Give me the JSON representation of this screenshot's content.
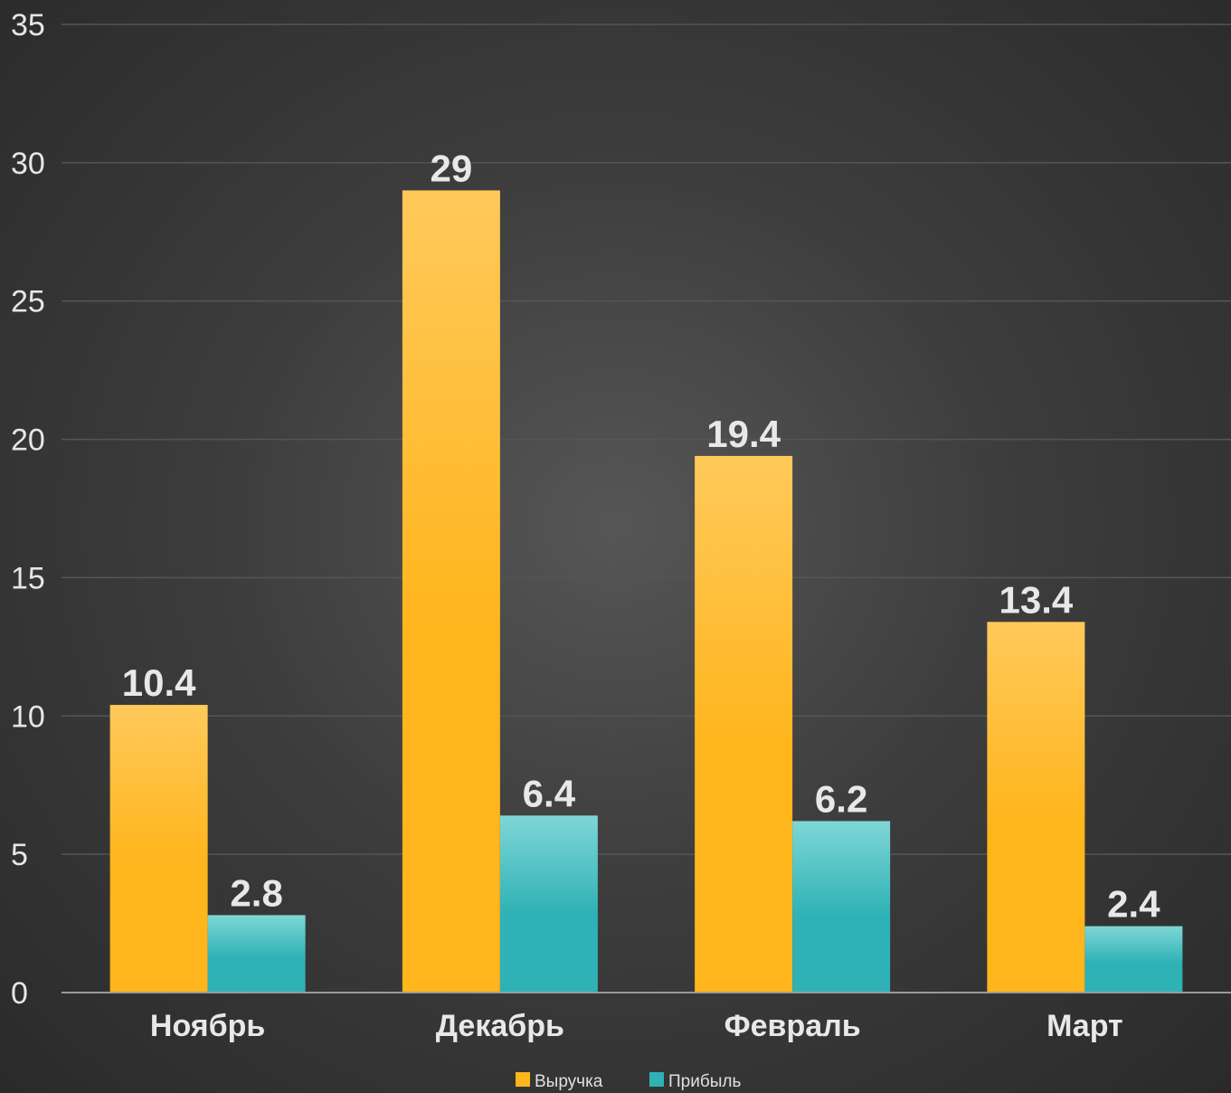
{
  "chart_data": {
    "type": "bar",
    "categories": [
      "Ноябрь",
      "Декабрь",
      "Февраль",
      "Март"
    ],
    "series": [
      {
        "name": "Выручка",
        "values": [
          10.4,
          29,
          19.4,
          13.4
        ],
        "color": "#ffb51c",
        "color_light": "#ffc95a"
      },
      {
        "name": "Прибыль",
        "values": [
          2.8,
          6.4,
          6.2,
          2.4
        ],
        "color": "#2fb2b6",
        "color_light": "#7fd6d6"
      }
    ],
    "data_labels": [
      [
        "10.4",
        "29",
        "19.4",
        "13.4"
      ],
      [
        "2.8",
        "6.4",
        "6.2",
        "2.4"
      ]
    ],
    "ylim": [
      0,
      35
    ],
    "yticks": [
      "0",
      "5",
      "10",
      "15",
      "20",
      "25",
      "30",
      "35"
    ],
    "ytick_values": [
      0,
      5,
      10,
      15,
      20,
      25,
      30,
      35
    ],
    "grid": true,
    "legend_position": "bottom-center",
    "background": "#3a3a3a"
  }
}
